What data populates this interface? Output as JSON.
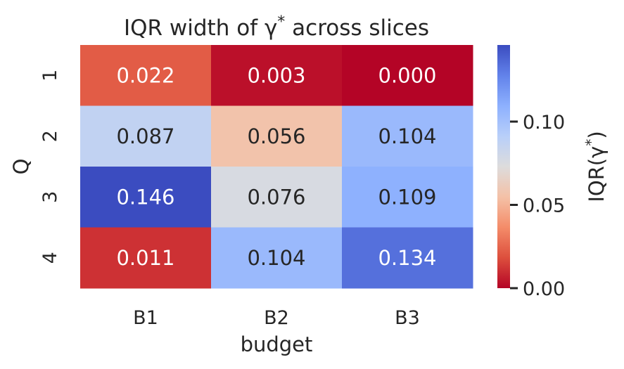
{
  "chart_data": {
    "type": "heatmap",
    "title": "IQR width of γ* across slices",
    "xlabel": "budget",
    "ylabel": "Q",
    "x_categories": [
      "B1",
      "B2",
      "B3"
    ],
    "y_categories": [
      "1",
      "2",
      "3",
      "4"
    ],
    "values": [
      [
        0.022,
        0.003,
        0.0
      ],
      [
        0.087,
        0.056,
        0.104
      ],
      [
        0.146,
        0.076,
        0.109
      ],
      [
        0.011,
        0.104,
        0.134
      ]
    ],
    "value_labels": [
      [
        "0.022",
        "0.003",
        "0.000"
      ],
      [
        "0.087",
        "0.056",
        "0.104"
      ],
      [
        "0.146",
        "0.076",
        "0.109"
      ],
      [
        "0.011",
        "0.104",
        "0.134"
      ]
    ],
    "colormap": "coolwarm_r",
    "vmin": 0.0,
    "vmax": 0.146,
    "colorbar": {
      "label": "IQR(γ*)",
      "ticks": [
        0.0,
        0.05,
        0.1
      ],
      "tick_labels": [
        "0.00",
        "0.05",
        "0.10"
      ]
    },
    "colors": {
      "low": "#b40426",
      "mid": "#dddcdc",
      "high": "#3b4cc0",
      "text_dark": "#262626",
      "text_light": "#ffffff"
    }
  }
}
